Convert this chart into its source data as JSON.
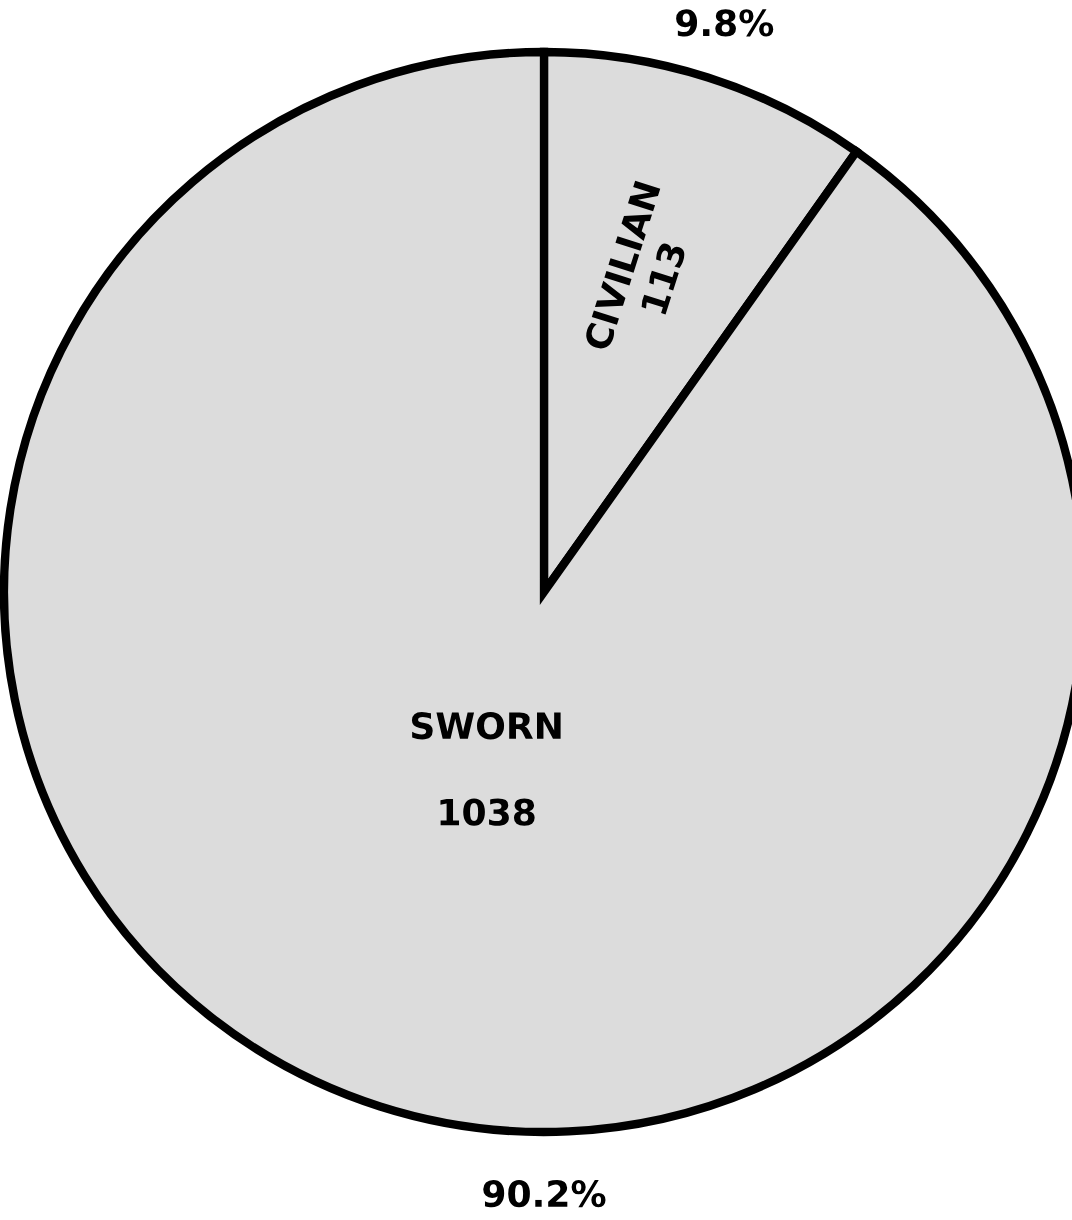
{
  "chart_data": {
    "type": "pie",
    "categories": [
      "CIVILIAN",
      "SWORN"
    ],
    "values": [
      113,
      1038
    ],
    "colors": [
      "#dcdcdc",
      "#dcdcdc"
    ],
    "data_labels": true,
    "annotations": [
      "9.8%",
      "90.2%"
    ]
  }
}
